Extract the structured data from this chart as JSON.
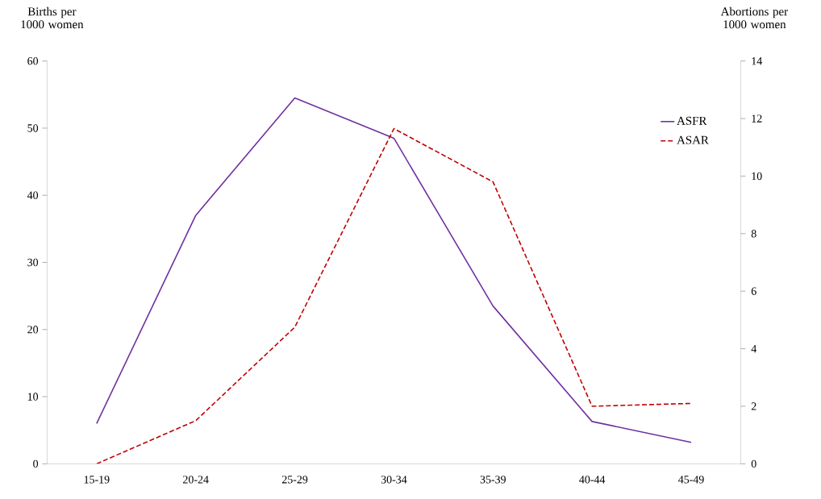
{
  "chart_data": {
    "type": "line",
    "ylabel": "Births per 1000 women",
    "y2label": "Abortions per 1000 women",
    "categories": [
      "15-19",
      "20-24",
      "25-29",
      "30-34",
      "35-39",
      "40-44",
      "45-49"
    ],
    "series": [
      {
        "name": "ASFR",
        "color": "#7030a0",
        "line_style": "solid",
        "values": [
          6.0,
          37.0,
          54.5,
          48.5,
          23.5,
          6.3,
          3.2
        ]
      },
      {
        "name": "ASAR",
        "color": "#c00000",
        "line_style": "dashed",
        "axis": "y2",
        "values": [
          0,
          1.5,
          4.75,
          11.65,
          9.8,
          2.0,
          2.1
        ]
      }
    ],
    "ylim": [
      0,
      60
    ],
    "yticks": [
      0,
      10,
      20,
      30,
      40,
      50,
      60
    ],
    "y2lim": [
      0,
      14
    ],
    "y2ticks": [
      0,
      2,
      4,
      6,
      8,
      10,
      12,
      14
    ],
    "grid": false,
    "legend": "top right",
    "marker": "none"
  }
}
